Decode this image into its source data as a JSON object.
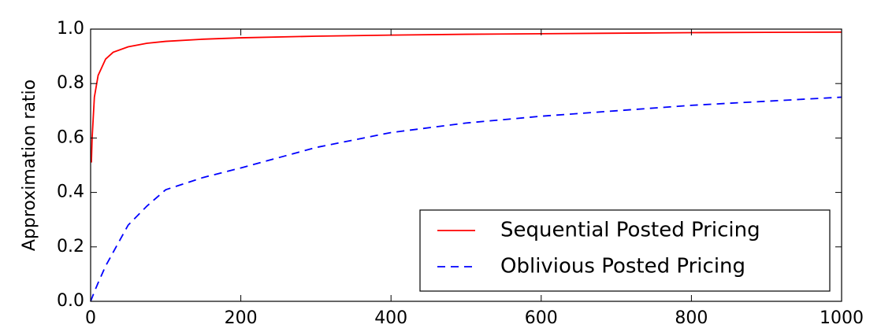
{
  "chart_data": {
    "type": "line",
    "ylabel": "Approximation ratio",
    "x": [
      0,
      1,
      2,
      5,
      10,
      20,
      30,
      50,
      75,
      100,
      150,
      200,
      300,
      400,
      500,
      600,
      700,
      800,
      900,
      1000
    ],
    "series": [
      {
        "name": "Sequential Posted Pricing",
        "color": "#ff0000",
        "dash": "solid",
        "values": [
          null,
          0.51,
          0.6,
          0.75,
          0.83,
          0.89,
          0.915,
          0.935,
          0.948,
          0.955,
          0.963,
          0.968,
          0.974,
          0.978,
          0.981,
          0.983,
          0.985,
          0.987,
          0.988,
          0.989
        ]
      },
      {
        "name": "Oblivious Posted Pricing",
        "color": "#0000ff",
        "dash": "dashed",
        "values": [
          0,
          0.007,
          0.014,
          0.035,
          0.068,
          0.13,
          0.18,
          0.28,
          0.35,
          0.41,
          0.455,
          0.49,
          0.565,
          0.62,
          0.655,
          0.68,
          0.7,
          0.72,
          0.735,
          0.75
        ]
      }
    ],
    "xlim": [
      0,
      1000
    ],
    "xticks": [
      0,
      200,
      400,
      600,
      800,
      1000
    ],
    "ylim": [
      0,
      1
    ],
    "yticks": [
      {
        "value": 0,
        "label": "0.0"
      },
      0.2,
      0.4,
      0.6,
      0.8,
      {
        "value": 1,
        "label": "1.0"
      }
    ],
    "legend": "lower right",
    "grid": false
  }
}
